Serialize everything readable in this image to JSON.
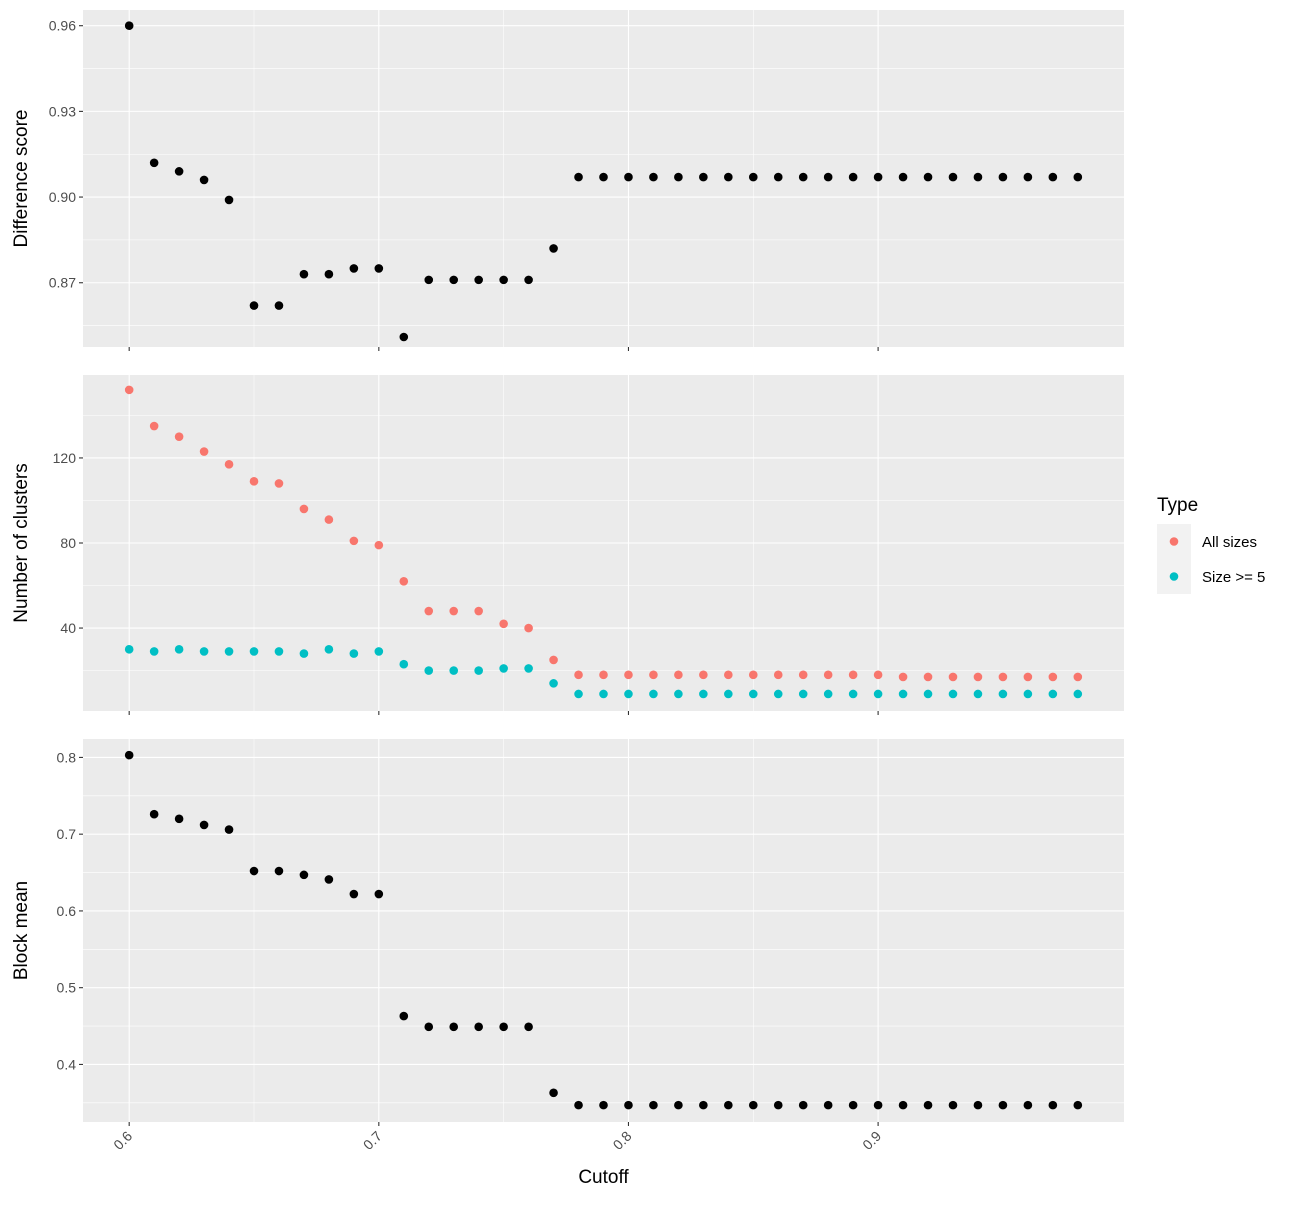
{
  "chart_data": {
    "type": "scatter",
    "x_label": "Cutoff",
    "x_ticks": [
      0.6,
      0.7,
      0.8,
      0.9
    ],
    "x_tick_labels": [
      "0.6",
      "0.7",
      "0.8",
      "0.9"
    ],
    "xlim": [
      0.5815,
      0.9985
    ],
    "x": [
      0.6,
      0.61,
      0.62,
      0.63,
      0.64,
      0.65,
      0.66,
      0.67,
      0.68,
      0.69,
      0.7,
      0.71,
      0.72,
      0.73,
      0.74,
      0.75,
      0.76,
      0.77,
      0.78,
      0.79,
      0.8,
      0.81,
      0.82,
      0.83,
      0.84,
      0.85,
      0.86,
      0.87,
      0.88,
      0.89,
      0.9,
      0.91,
      0.92,
      0.93,
      0.94,
      0.95,
      0.96,
      0.97,
      0.98
    ],
    "grid": true,
    "legend": {
      "title": "Type",
      "position": "right",
      "entries": [
        {
          "label": "All sizes",
          "color": "#F8766D"
        },
        {
          "label": "Size >= 5",
          "color": "#00BFC4"
        }
      ]
    },
    "panels": [
      {
        "ylabel": "Difference score",
        "yticks": [
          0.87,
          0.9,
          0.93,
          0.96
        ],
        "ytick_labels": [
          "0.87",
          "0.90",
          "0.93",
          "0.96"
        ],
        "ylim": [
          0.8475,
          0.9655
        ],
        "series": [
          {
            "color": "#000000",
            "values": [
              0.96,
              0.912,
              0.909,
              0.906,
              0.899,
              0.862,
              0.862,
              0.873,
              0.873,
              0.875,
              0.875,
              0.851,
              0.871,
              0.871,
              0.871,
              0.871,
              0.871,
              0.882,
              0.907,
              0.907,
              0.907,
              0.907,
              0.907,
              0.907,
              0.907,
              0.907,
              0.907,
              0.907,
              0.907,
              0.907,
              0.907,
              0.907,
              0.907,
              0.907,
              0.907,
              0.907,
              0.907,
              0.907,
              0.907
            ]
          }
        ]
      },
      {
        "ylabel": "Number of clusters",
        "yticks": [
          40,
          80,
          120
        ],
        "ytick_labels": [
          "40",
          "80",
          "120"
        ],
        "ylim": [
          1,
          159
        ],
        "series": [
          {
            "name": "All sizes",
            "color": "#F8766D",
            "values": [
              152,
              135,
              130,
              123,
              117,
              109,
              108,
              96,
              91,
              81,
              79,
              62,
              48,
              48,
              48,
              42,
              40,
              25,
              18,
              18,
              18,
              18,
              18,
              18,
              18,
              18,
              18,
              18,
              18,
              18,
              18,
              17,
              17,
              17,
              17,
              17,
              17,
              17,
              17
            ]
          },
          {
            "name": "Size >= 5",
            "color": "#00BFC4",
            "values": [
              30,
              29,
              30,
              29,
              29,
              29,
              29,
              28,
              30,
              28,
              29,
              23,
              20,
              20,
              20,
              21,
              21,
              14,
              9,
              9,
              9,
              9,
              9,
              9,
              9,
              9,
              9,
              9,
              9,
              9,
              9,
              9,
              9,
              9,
              9,
              9,
              9,
              9,
              9
            ]
          }
        ]
      },
      {
        "ylabel": "Block mean",
        "yticks": [
          0.4,
          0.5,
          0.6,
          0.7,
          0.8
        ],
        "ytick_labels": [
          "0.4",
          "0.5",
          "0.6",
          "0.7",
          "0.8"
        ],
        "ylim": [
          0.325,
          0.824
        ],
        "series": [
          {
            "color": "#000000",
            "values": [
              0.803,
              0.726,
              0.72,
              0.712,
              0.706,
              0.652,
              0.652,
              0.647,
              0.641,
              0.622,
              0.622,
              0.463,
              0.449,
              0.449,
              0.449,
              0.449,
              0.449,
              0.363,
              0.347,
              0.347,
              0.347,
              0.347,
              0.347,
              0.347,
              0.347,
              0.347,
              0.347,
              0.347,
              0.347,
              0.347,
              0.347,
              0.347,
              0.347,
              0.347,
              0.347,
              0.347,
              0.347,
              0.347,
              0.347
            ]
          }
        ]
      }
    ]
  }
}
